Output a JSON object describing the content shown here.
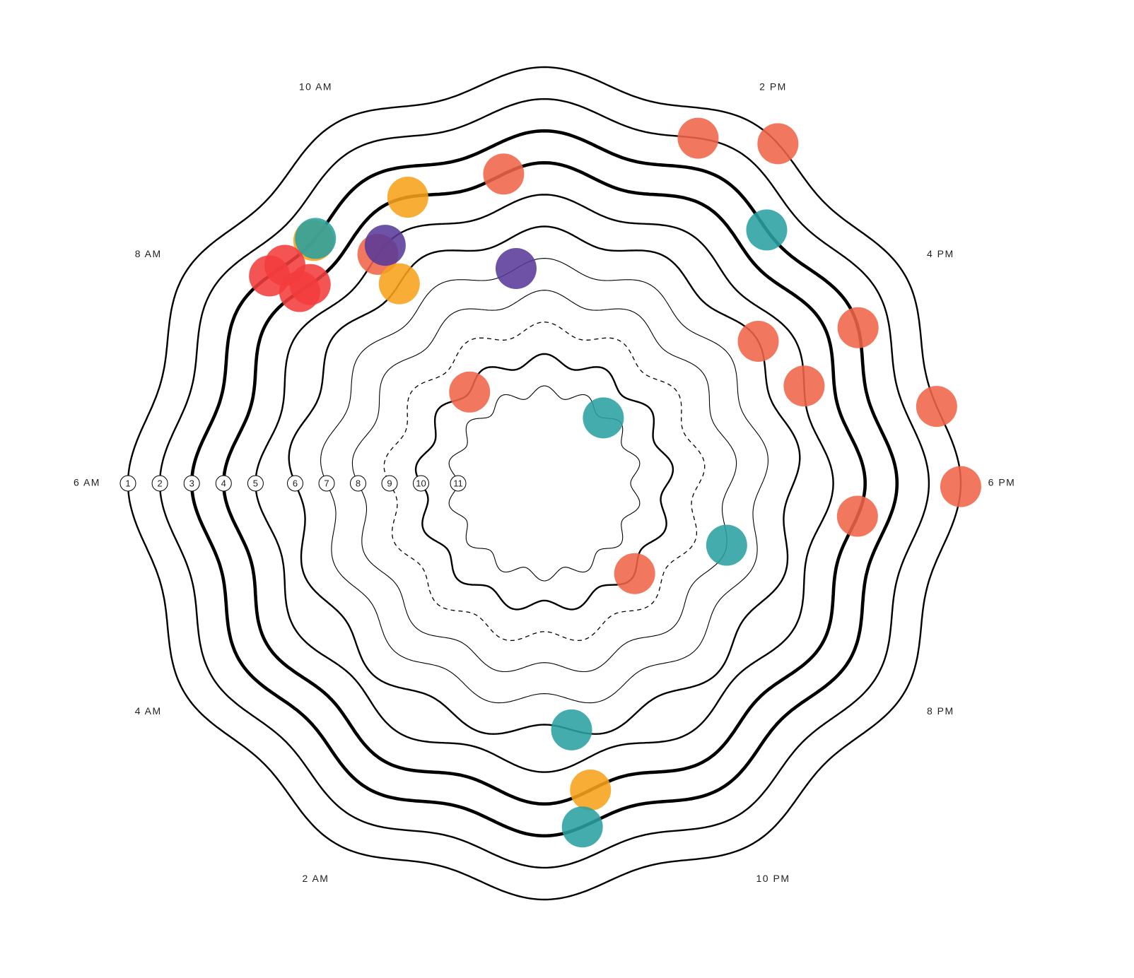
{
  "chart_data": {
    "type": "radial-rings",
    "rings": [
      1,
      2,
      3,
      4,
      5,
      6,
      7,
      8,
      9,
      10,
      11
    ],
    "ring_styles": [
      "normal",
      "normal",
      "thick",
      "thick",
      "normal",
      "normal",
      "thin",
      "thin",
      "dashed",
      "normal",
      "thin"
    ],
    "hour_labels": [
      {
        "value": 6,
        "label": "6 AM"
      },
      {
        "value": 8,
        "label": "8 AM"
      },
      {
        "value": 10,
        "label": "10 AM"
      },
      {
        "value": 14,
        "label": "2 PM"
      },
      {
        "value": 16,
        "label": "4 PM"
      },
      {
        "value": 18,
        "label": "6 PM"
      },
      {
        "value": 20,
        "label": "8 PM"
      },
      {
        "value": 22,
        "label": "10 PM"
      },
      {
        "value": 26,
        "label": "2 AM"
      },
      {
        "value": 28,
        "label": "4 AM"
      }
    ],
    "points": [
      {
        "ring": 2,
        "hour": 13.6,
        "color": "#f06449"
      },
      {
        "ring": 1,
        "hour": 14.3,
        "color": "#f06449"
      },
      {
        "ring": 4,
        "hour": 11.5,
        "color": "#f06449"
      },
      {
        "ring": 4,
        "hour": 10.3,
        "color": "#f7a21b"
      },
      {
        "ring": 3,
        "hour": 9.1,
        "color": "#f7a21b"
      },
      {
        "ring": 3,
        "hour": 9.13,
        "color": "#2aa0a0"
      },
      {
        "ring": 5,
        "hour": 9.6,
        "color": "#f06449"
      },
      {
        "ring": 5,
        "hour": 9.75,
        "color": "#5a3a9a"
      },
      {
        "ring": 6,
        "hour": 9.6,
        "color": "#f7a21b"
      },
      {
        "ring": 7,
        "hour": 11.5,
        "color": "#5a3a9a"
      },
      {
        "ring": 3,
        "hour": 8.47,
        "color": "#f23c3c"
      },
      {
        "ring": 3,
        "hour": 8.67,
        "color": "#f23c3c"
      },
      {
        "ring": 4,
        "hour": 8.69,
        "color": "#f23c3c"
      },
      {
        "ring": 4,
        "hour": 8.54,
        "color": "#f23c3c"
      },
      {
        "ring": 3,
        "hour": 14.75,
        "color": "#2aa0a0"
      },
      {
        "ring": 3,
        "hour": 16.24,
        "color": "#f06449"
      },
      {
        "ring": 6,
        "hour": 15.76,
        "color": "#f06449"
      },
      {
        "ring": 5,
        "hour": 16.63,
        "color": "#f06449"
      },
      {
        "ring": 1,
        "hour": 17.26,
        "color": "#f06449"
      },
      {
        "ring": 1,
        "hour": 18.03,
        "color": "#f06449"
      },
      {
        "ring": 4,
        "hour": 18.4,
        "color": "#f06449"
      },
      {
        "ring": 8,
        "hour": 19.25,
        "color": "#2aa0a0"
      },
      {
        "ring": 10,
        "hour": 9.38,
        "color": "#f06449"
      },
      {
        "ring": 11,
        "hour": 14.8,
        "color": "#2aa0a0"
      },
      {
        "ring": 10,
        "hour": 21,
        "color": "#f06449"
      },
      {
        "ring": 6,
        "hour": 23.58,
        "color": "#2aa0a0"
      },
      {
        "ring": 4,
        "hour": 23.43,
        "color": "#f7a21b"
      },
      {
        "ring": 3,
        "hour": 23.58,
        "color": "#2aa0a0"
      }
    ]
  }
}
